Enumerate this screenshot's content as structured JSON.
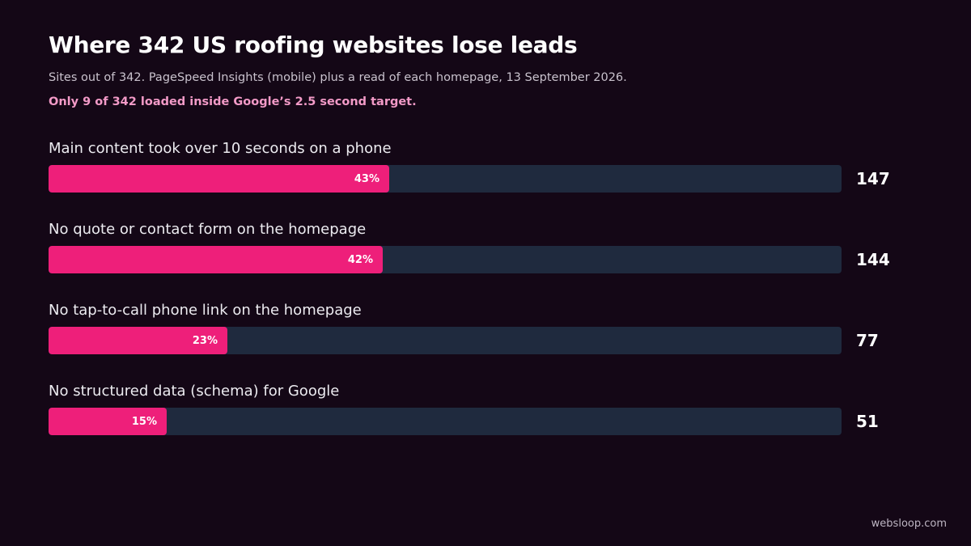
{
  "title": "Where 342 US roofing websites lose leads",
  "subtitle": "Sites out of 342. PageSpeed Insights (mobile) plus a read of each homepage, 13 September 2026.",
  "highlight": "Only 9 of 342 loaded inside Google’s 2.5 second target.",
  "footer": "websloop.com",
  "colors": {
    "background": "#140716",
    "bar_fill": "#ee1f7a",
    "track": "#1f2a3e",
    "highlight": "#f29ac7"
  },
  "chart_data": {
    "type": "bar",
    "orientation": "horizontal",
    "total": 342,
    "categories": [
      "Main content took over 10 seconds on a phone",
      "No quote or contact form on the homepage",
      "No tap-to-call phone link on the homepage",
      "No structured data (schema) for Google"
    ],
    "values": [
      147,
      144,
      77,
      51
    ],
    "percent_labels": [
      "43%",
      "42%",
      "23%",
      "15%"
    ],
    "value_labels": [
      "147",
      "144",
      "77",
      "51"
    ],
    "xlim": [
      0,
      342
    ],
    "grid": false
  }
}
